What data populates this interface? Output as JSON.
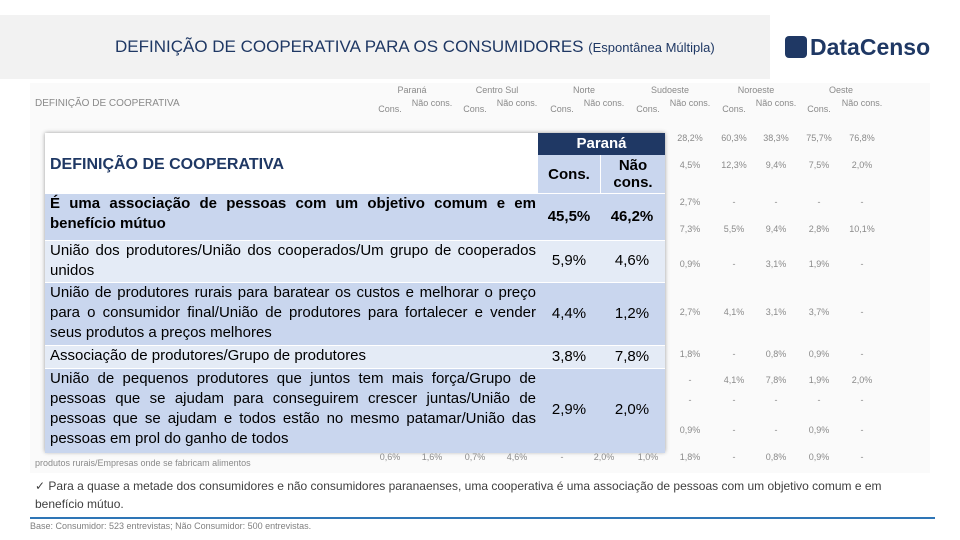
{
  "header": {
    "title": "DEFINIÇÃO DE COOPERATIVA PARA OS CONSUMIDORES",
    "subtitle": "(Espontânea Múltipla)",
    "logo": "DataCenso"
  },
  "table": {
    "label_header": "DEFINIÇÃO  DE COOPERATIVA",
    "regions": [
      "Paraná",
      "Centro Sul",
      "Norte",
      "Sudoeste",
      "Noroeste",
      "Oeste"
    ],
    "sub_headers": [
      "Cons.",
      "Não cons."
    ],
    "rows": [
      [
        "28,2%",
        "60,3%",
        "38,3%",
        "75,7%",
        "76,8%"
      ],
      [
        "4,5%",
        "12,3%",
        "9,4%",
        "7,5%",
        "2,0%"
      ],
      [
        "2,7%",
        "-",
        "-",
        "-",
        "-"
      ],
      [
        "7,3%",
        "5,5%",
        "9,4%",
        "2,8%",
        "10,1%"
      ],
      [
        "0,9%",
        "-",
        "3,1%",
        "1,9%",
        "-"
      ],
      [
        "2,7%",
        "4,1%",
        "3,1%",
        "3,7%",
        "-"
      ],
      [
        "1,8%",
        "-",
        "0,8%",
        "0,9%",
        "-"
      ],
      [
        "-",
        "4,1%",
        "7,8%",
        "1,9%",
        "2,0%"
      ],
      [
        "-",
        "-",
        "-",
        "-",
        "-"
      ],
      [
        "0,9%",
        "-",
        "-",
        "0,9%",
        "-"
      ]
    ],
    "last_row": {
      "label": "produtos rurais/Empresas onde se fabricam alimentos",
      "values": [
        "0,6%",
        "1,6%",
        "0,7%",
        "4,6%",
        "-",
        "2,0%",
        "1,0%",
        "1,8%",
        "-",
        "0,8%",
        "0,9%",
        "-"
      ]
    }
  },
  "overlay": {
    "heading": "DEFINIÇÃO  DE COOPERATIVA",
    "region": "Paraná",
    "cons": "Cons.",
    "nao_cons": "Não cons.",
    "rows": [
      {
        "label": "É uma associação de pessoas com um objetivo comum e em benefício mútuo",
        "values": [
          "45,5%",
          "46,2%"
        ]
      },
      {
        "label": "União dos produtores/União dos cooperados/Um grupo de cooperados unidos",
        "values": [
          "5,9%",
          "4,6%"
        ]
      },
      {
        "label": "União de produtores rurais para baratear os custos e melhorar o preço para o consumidor final/União de produtores para fortalecer e vender seus produtos a preços melhores",
        "values": [
          "4,4%",
          "1,2%"
        ]
      },
      {
        "label": "Associação de produtores/Grupo de produtores",
        "values": [
          "3,8%",
          "7,8%"
        ]
      },
      {
        "label": "União de pequenos produtores que juntos tem mais força/Grupo de pessoas que se ajudam para conseguirem crescer juntas/União de pessoas que se ajudam e todos estão no mesmo patamar/União das pessoas em prol do ganho de todos",
        "values": [
          "2,9%",
          "2,0%"
        ]
      }
    ]
  },
  "note": "Para a quase a metade dos consumidores e não consumidores paranaenses, uma cooperativa é uma associação de pessoas com um objetivo comum e em benefício mútuo.",
  "base": "Base: Consumidor: 523 entrevistas; Não Consumidor: 500 entrevistas."
}
